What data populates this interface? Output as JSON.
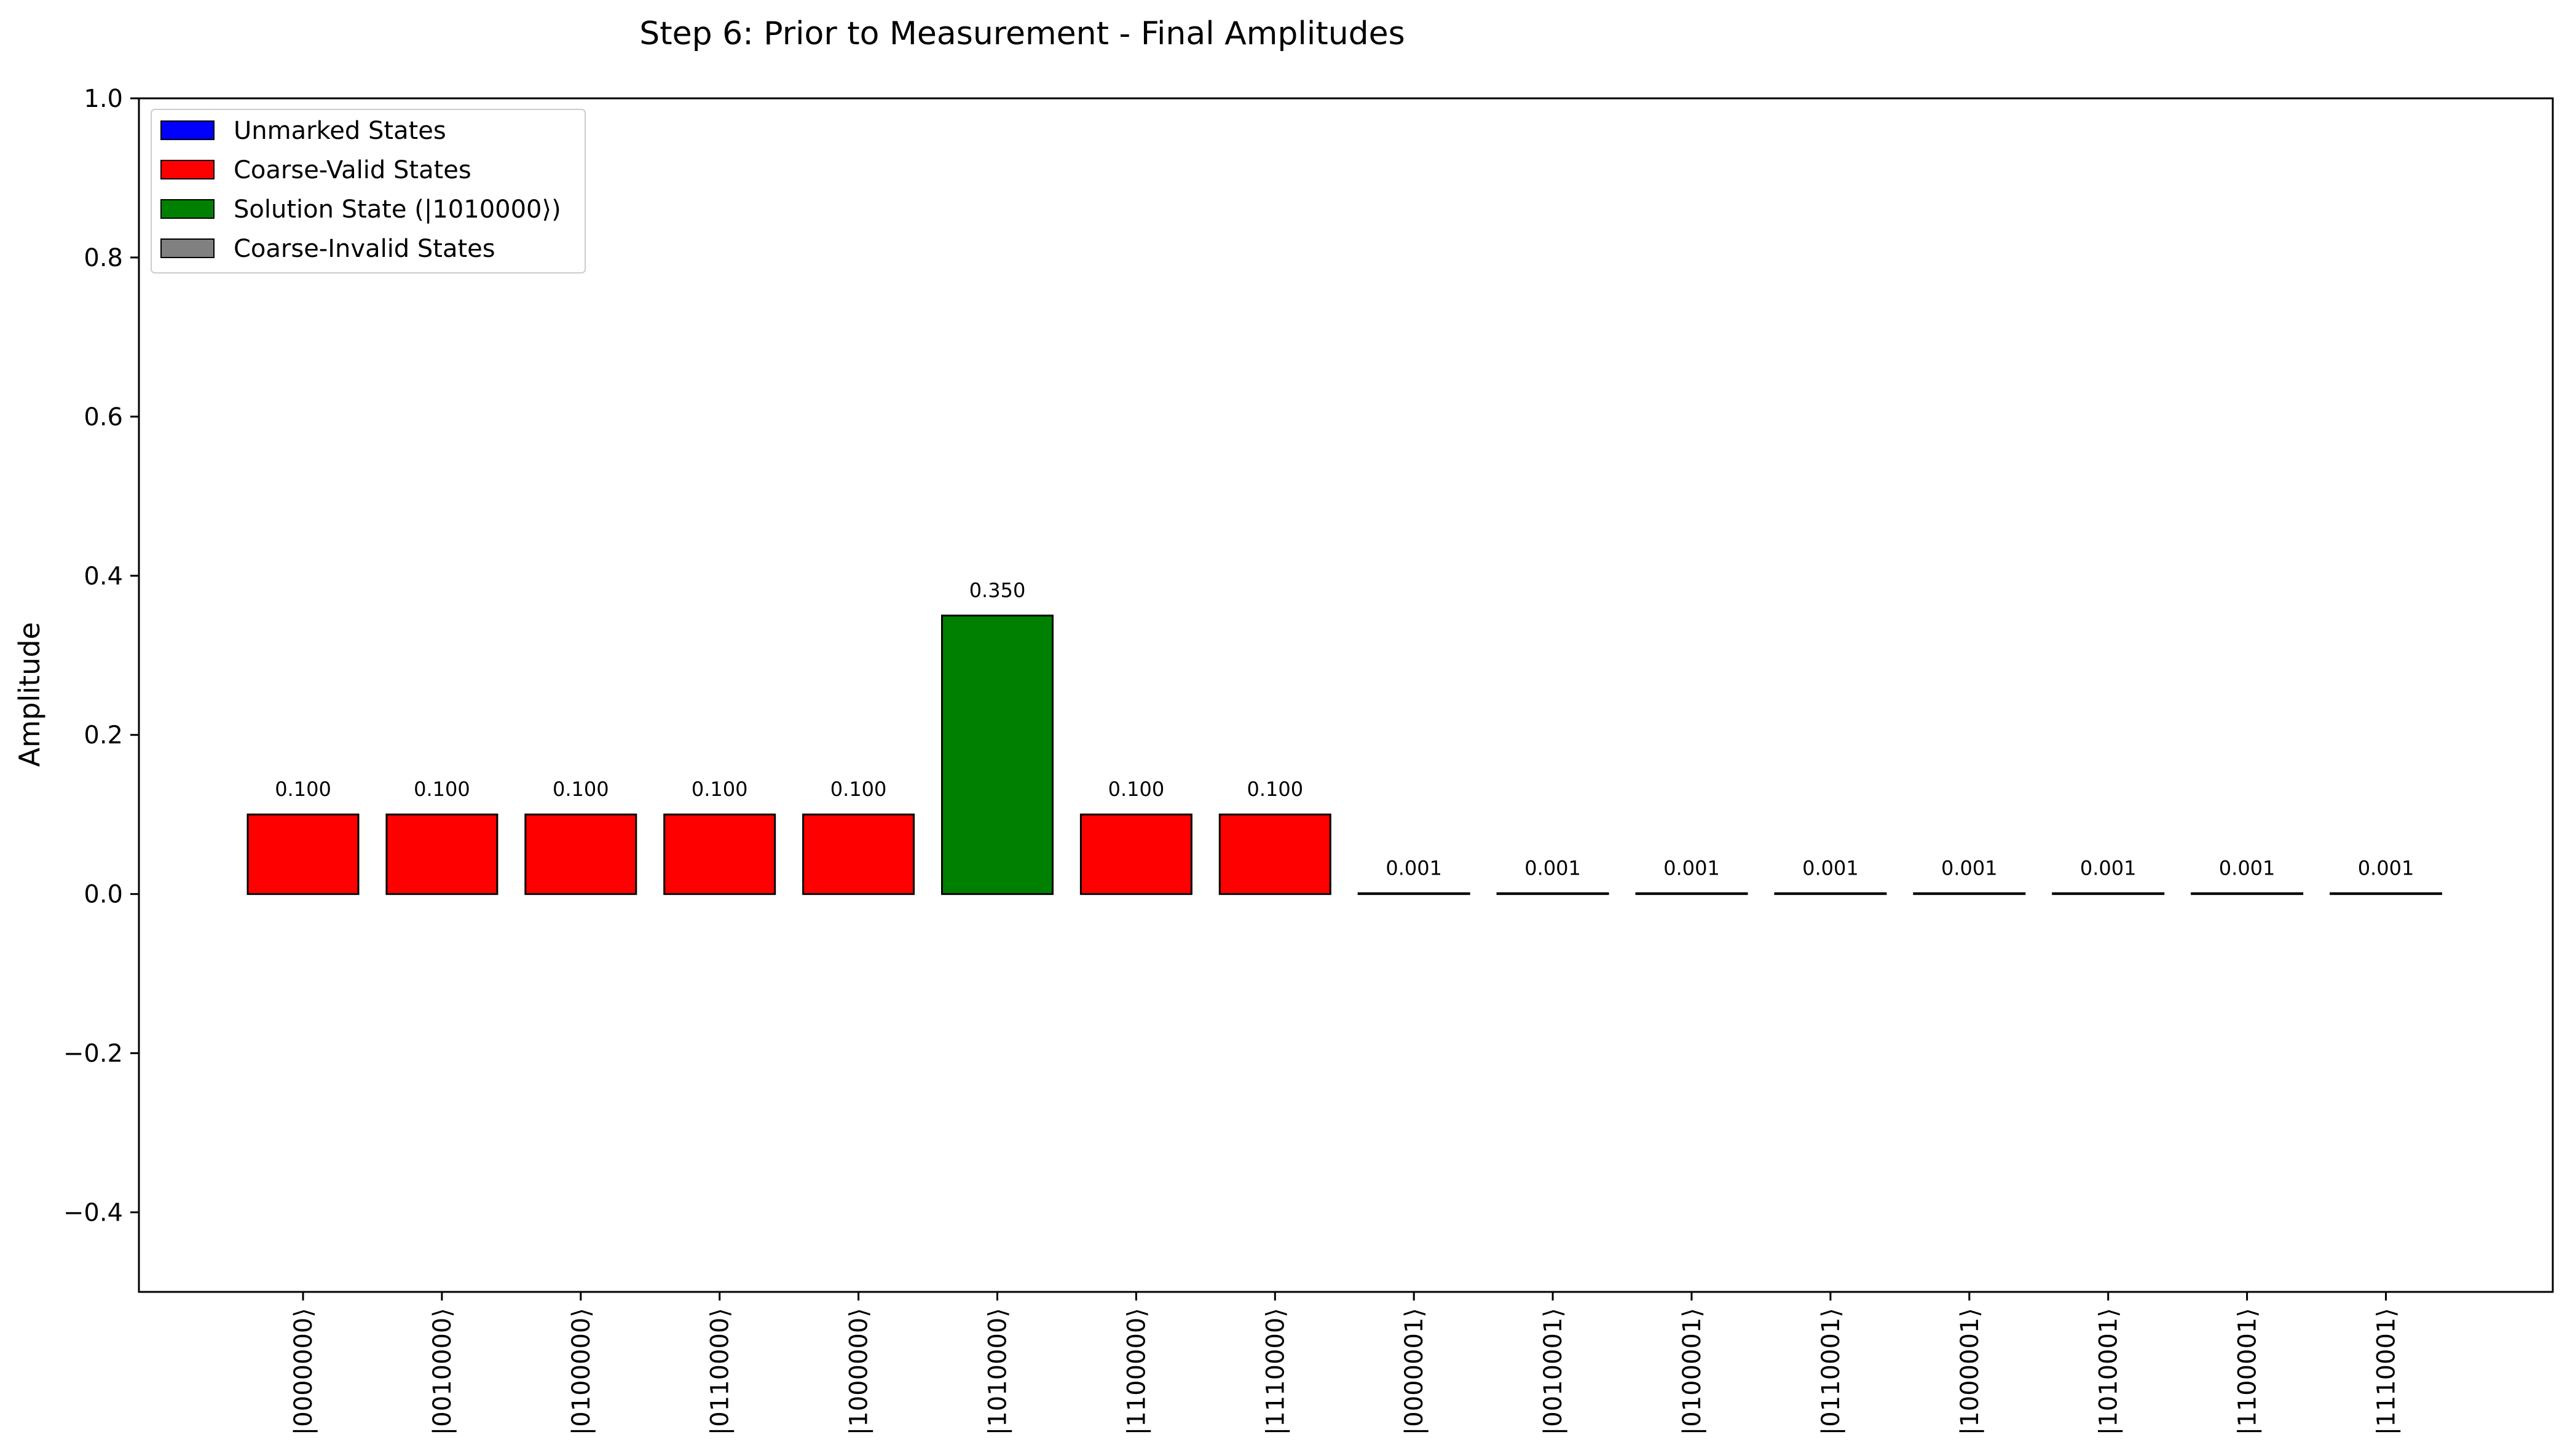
{
  "chart_data": {
    "type": "bar",
    "title": "Step 6: Prior to Measurement - Final Amplitudes",
    "xlabel": "",
    "ylabel": "Amplitude",
    "ylim": [
      -0.5,
      1.0
    ],
    "yticks": [
      -0.4,
      -0.2,
      0.0,
      0.2,
      0.4,
      0.6,
      0.8,
      1.0
    ],
    "ytick_labels": [
      "−0.4",
      "−0.2",
      "0.0",
      "0.2",
      "0.4",
      "0.6",
      "0.8",
      "1.0"
    ],
    "grid": false,
    "legend_placement": "top-left",
    "legend": [
      {
        "label": "Unmarked States",
        "color": "#0000ff"
      },
      {
        "label": "Coarse-Valid States",
        "color": "#ff0000"
      },
      {
        "label": "Solution State (|1010000⟩)",
        "color": "#008000"
      },
      {
        "label": "Coarse-Invalid States",
        "color": "#808080"
      }
    ],
    "categories": [
      "|0000000⟩",
      "|0010000⟩",
      "|0100000⟩",
      "|0110000⟩",
      "|1000000⟩",
      "|1010000⟩",
      "|1100000⟩",
      "|1110000⟩",
      "|0000001⟩",
      "|0010001⟩",
      "|0100001⟩",
      "|0110001⟩",
      "|1000001⟩",
      "|1010001⟩",
      "|1100001⟩",
      "|1110001⟩"
    ],
    "values": [
      0.1,
      0.1,
      0.1,
      0.1,
      0.1,
      0.35,
      0.1,
      0.1,
      0.001,
      0.001,
      0.001,
      0.001,
      0.001,
      0.001,
      0.001,
      0.001
    ],
    "value_labels": [
      "0.100",
      "0.100",
      "0.100",
      "0.100",
      "0.100",
      "0.350",
      "0.100",
      "0.100",
      "0.001",
      "0.001",
      "0.001",
      "0.001",
      "0.001",
      "0.001",
      "0.001",
      "0.001"
    ],
    "bar_colors": [
      "#ff0000",
      "#ff0000",
      "#ff0000",
      "#ff0000",
      "#ff0000",
      "#008000",
      "#ff0000",
      "#ff0000",
      "#808080",
      "#808080",
      "#808080",
      "#808080",
      "#808080",
      "#808080",
      "#808080",
      "#808080"
    ]
  }
}
